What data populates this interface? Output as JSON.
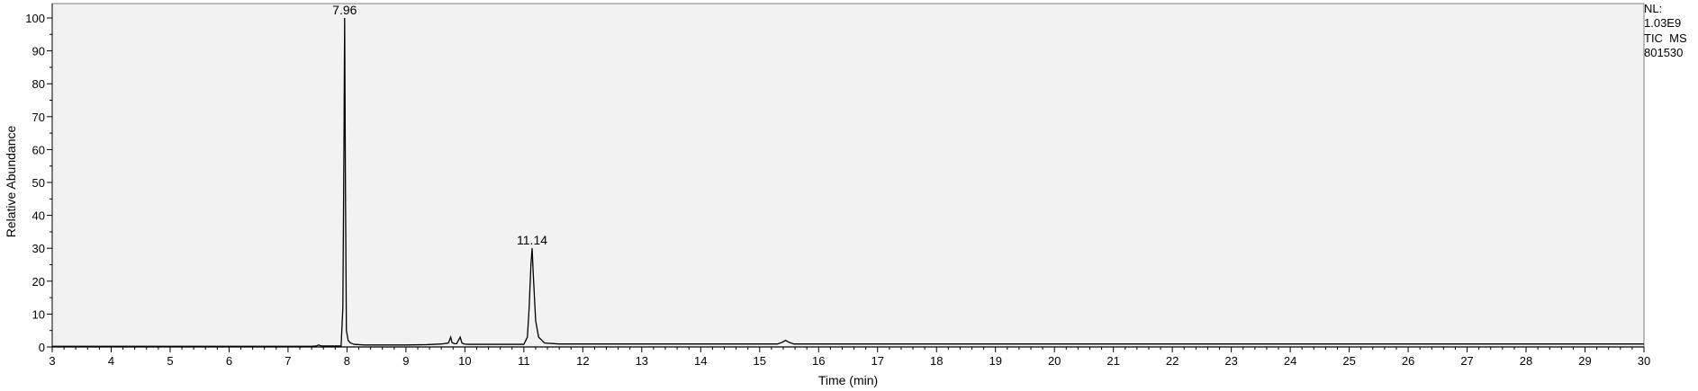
{
  "chart_data": {
    "type": "line",
    "xlabel": "Time (min)",
    "ylabel": "Relative Abundance",
    "xlim": [
      3,
      30
    ],
    "ylim": [
      0,
      100
    ],
    "x_ticks": [
      "3",
      "4",
      "5",
      "6",
      "7",
      "8",
      "9",
      "10",
      "11",
      "12",
      "13",
      "14",
      "15",
      "16",
      "17",
      "18",
      "19",
      "20",
      "21",
      "22",
      "23",
      "24",
      "25",
      "26",
      "27",
      "28",
      "29",
      "30"
    ],
    "y_ticks": [
      "0",
      "10",
      "20",
      "30",
      "40",
      "50",
      "60",
      "70",
      "80",
      "90",
      "100"
    ],
    "grid": false,
    "background": "#f2f2f2",
    "line_color": "#000000",
    "annotations": [
      {
        "label": "7.96",
        "x": 7.96,
        "y": 100
      },
      {
        "label": "11.14",
        "x": 11.14,
        "y": 30
      }
    ],
    "side_labels": [
      "NL:",
      "1.03E9",
      "TIC  MS",
      "801530"
    ],
    "series": [
      {
        "x": [
          3.0,
          7.4,
          7.48,
          7.52,
          7.56,
          7.9,
          7.93,
          7.95,
          7.96,
          7.975,
          7.99,
          8.02,
          8.06,
          8.12,
          8.3,
          9.0,
          9.35,
          9.6,
          9.72,
          9.76,
          9.78,
          9.82,
          9.86,
          9.92,
          9.95,
          9.99,
          10.05,
          11.0,
          11.06,
          11.09,
          11.12,
          11.14,
          11.16,
          11.2,
          11.25,
          11.35,
          11.6,
          15.3,
          15.38,
          15.44,
          15.5,
          15.58,
          30.0
        ],
        "y": [
          0.2,
          0.2,
          0.3,
          0.6,
          0.3,
          0.3,
          12,
          65,
          100,
          45,
          5,
          2,
          1.2,
          0.8,
          0.6,
          0.6,
          0.7,
          0.9,
          1.2,
          3.0,
          1.4,
          1.0,
          1.0,
          3.0,
          1.2,
          0.9,
          0.8,
          0.8,
          3.0,
          12,
          25,
          30,
          22,
          8,
          3,
          1.2,
          0.9,
          0.9,
          1.4,
          2.0,
          1.4,
          0.9,
          0.9
        ]
      }
    ]
  }
}
